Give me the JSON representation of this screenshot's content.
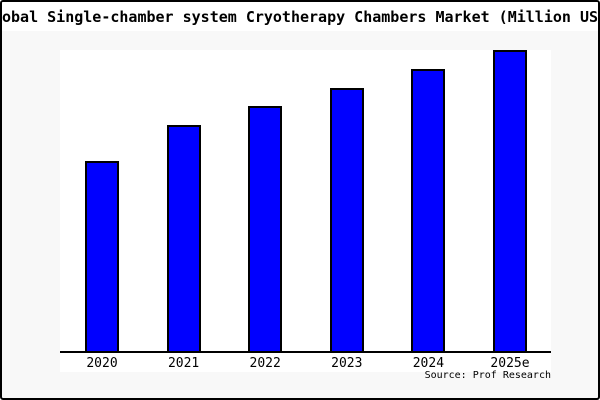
{
  "window": {
    "background_color": "#f8f8f8",
    "frame_border_color": "#000000",
    "title_band_color": "#ffffff"
  },
  "chart_data": {
    "type": "bar",
    "title": "Global Single-chamber system Cryotherapy Chambers Market (Million USD)",
    "title_visible_clipped": "obal Single-chamber system Cryotherapy Chambers Market (Million US",
    "categories": [
      "2020",
      "2021",
      "2022",
      "2023",
      "2024",
      "2025e"
    ],
    "values": [
      63.1,
      75.1,
      81.4,
      87.4,
      93.7,
      100
    ],
    "values_unit": "percent of tallest bar (y-axis has no tick labels in image)",
    "xlabel": "",
    "ylabel": "",
    "grid": false,
    "legend_position": "none",
    "plot_background": "#ffffff",
    "figure_background": "#f8f8f8",
    "bar_fill_color": "#0000ff",
    "bar_border_color": "#000000",
    "axis_line_color": "#000000",
    "source": "Source: Prof Research"
  }
}
